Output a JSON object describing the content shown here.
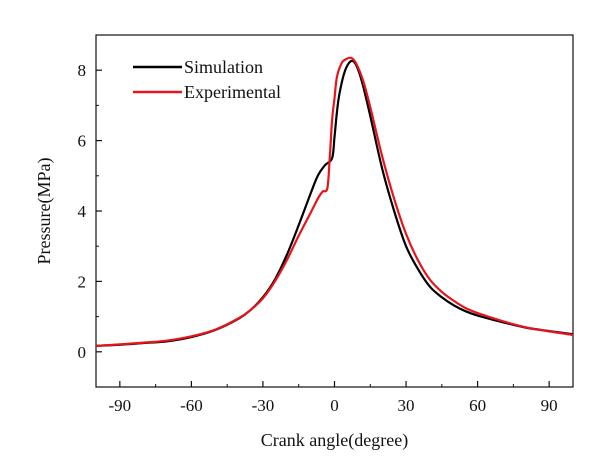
{
  "chart_data": {
    "type": "line",
    "title": "",
    "xlabel": "Crank angle(degree)",
    "ylabel": "Pressure(MPa)",
    "xlim": [
      -100,
      100
    ],
    "ylim": [
      -1,
      9
    ],
    "xticks": [
      -90,
      -60,
      -30,
      0,
      30,
      60,
      90
    ],
    "xtick_labels": [
      "-90",
      "-60",
      "-30",
      "0",
      "30",
      "60",
      "90"
    ],
    "yticks": [
      0,
      2,
      4,
      6,
      8
    ],
    "ytick_labels": [
      "0",
      "2",
      "4",
      "6",
      "8"
    ],
    "grid": false,
    "legend_position": "top-left",
    "series": [
      {
        "name": "Simulation",
        "color": "#000000",
        "points": [
          [
            -100,
            0.17
          ],
          [
            -90,
            0.2
          ],
          [
            -80,
            0.25
          ],
          [
            -70,
            0.3
          ],
          [
            -60,
            0.42
          ],
          [
            -50,
            0.62
          ],
          [
            -40,
            0.95
          ],
          [
            -35,
            1.2
          ],
          [
            -30,
            1.55
          ],
          [
            -25,
            2.05
          ],
          [
            -20,
            2.75
          ],
          [
            -15,
            3.6
          ],
          [
            -10,
            4.5
          ],
          [
            -7,
            5.0
          ],
          [
            -4,
            5.3
          ],
          [
            -1,
            5.5
          ],
          [
            0,
            6.1
          ],
          [
            1,
            6.8
          ],
          [
            2,
            7.3
          ],
          [
            4,
            7.9
          ],
          [
            6,
            8.2
          ],
          [
            8,
            8.25
          ],
          [
            10,
            8.0
          ],
          [
            12,
            7.55
          ],
          [
            15,
            6.7
          ],
          [
            20,
            5.2
          ],
          [
            25,
            4.0
          ],
          [
            30,
            3.0
          ],
          [
            35,
            2.35
          ],
          [
            40,
            1.85
          ],
          [
            45,
            1.55
          ],
          [
            50,
            1.32
          ],
          [
            55,
            1.15
          ],
          [
            60,
            1.03
          ],
          [
            70,
            0.85
          ],
          [
            80,
            0.69
          ],
          [
            90,
            0.59
          ],
          [
            100,
            0.5
          ]
        ]
      },
      {
        "name": "Experimental",
        "color": "#e8141b",
        "points": [
          [
            -100,
            0.17
          ],
          [
            -90,
            0.21
          ],
          [
            -80,
            0.26
          ],
          [
            -70,
            0.32
          ],
          [
            -60,
            0.44
          ],
          [
            -50,
            0.63
          ],
          [
            -40,
            0.96
          ],
          [
            -35,
            1.2
          ],
          [
            -30,
            1.52
          ],
          [
            -25,
            2.0
          ],
          [
            -20,
            2.6
          ],
          [
            -15,
            3.3
          ],
          [
            -10,
            3.95
          ],
          [
            -7,
            4.35
          ],
          [
            -5,
            4.55
          ],
          [
            -3,
            4.65
          ],
          [
            -2,
            5.5
          ],
          [
            -1,
            6.6
          ],
          [
            0,
            7.2
          ],
          [
            1,
            7.8
          ],
          [
            3,
            8.2
          ],
          [
            5,
            8.32
          ],
          [
            7,
            8.35
          ],
          [
            9,
            8.2
          ],
          [
            12,
            7.7
          ],
          [
            15,
            6.95
          ],
          [
            20,
            5.55
          ],
          [
            25,
            4.35
          ],
          [
            30,
            3.35
          ],
          [
            35,
            2.6
          ],
          [
            40,
            2.05
          ],
          [
            45,
            1.7
          ],
          [
            50,
            1.45
          ],
          [
            55,
            1.24
          ],
          [
            60,
            1.1
          ],
          [
            70,
            0.88
          ],
          [
            80,
            0.7
          ],
          [
            90,
            0.58
          ],
          [
            100,
            0.48
          ]
        ]
      }
    ]
  }
}
